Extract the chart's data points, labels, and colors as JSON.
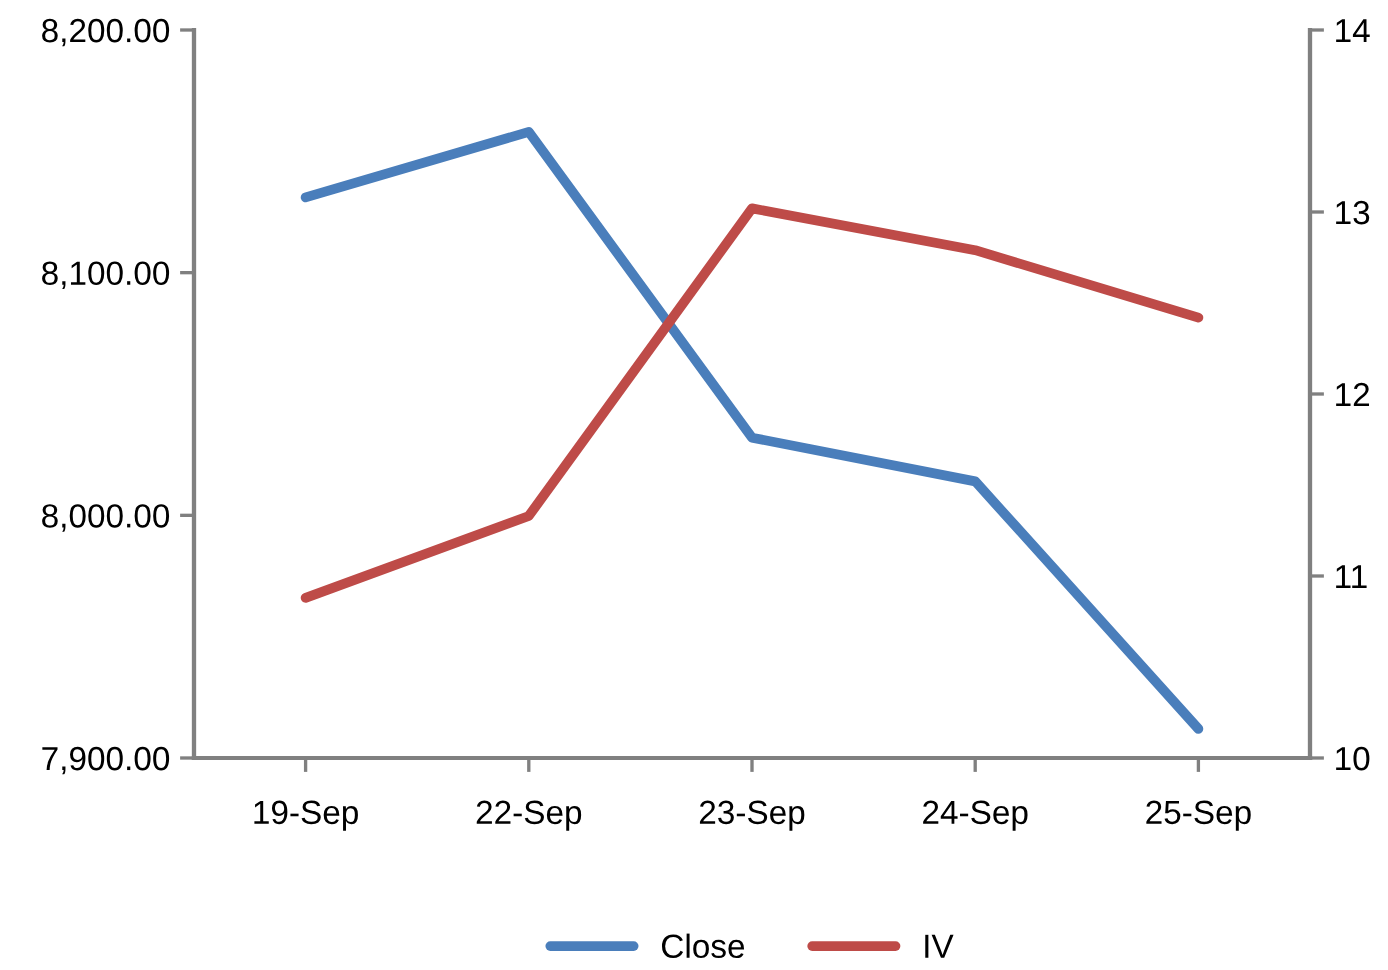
{
  "chart_data": {
    "type": "line",
    "categories": [
      "19-Sep",
      "22-Sep",
      "23-Sep",
      "24-Sep",
      "25-Sep"
    ],
    "series": [
      {
        "name": "Close",
        "color": "#4a7ebb",
        "values": [
          8131,
          8158,
          8032,
          8014,
          7912
        ]
      },
      {
        "name": "IV",
        "color": "#be4b48",
        "axis": "y2",
        "values": [
          10.88,
          11.33,
          13.02,
          12.79,
          12.42
        ]
      }
    ],
    "ylim": [
      7900,
      8200
    ],
    "yticks": [
      {
        "value": 7900,
        "label": "7,900.00"
      },
      {
        "value": 8000,
        "label": "8,000.00"
      },
      {
        "value": 8100,
        "label": "8,100.00"
      },
      {
        "value": 8200,
        "label": "8,200.00"
      }
    ],
    "y2lim": [
      10,
      14
    ],
    "y2ticks": [
      10,
      11,
      12,
      13,
      14
    ],
    "grid": false,
    "legend": "bottom",
    "marker": "none",
    "line_style": "solid"
  }
}
